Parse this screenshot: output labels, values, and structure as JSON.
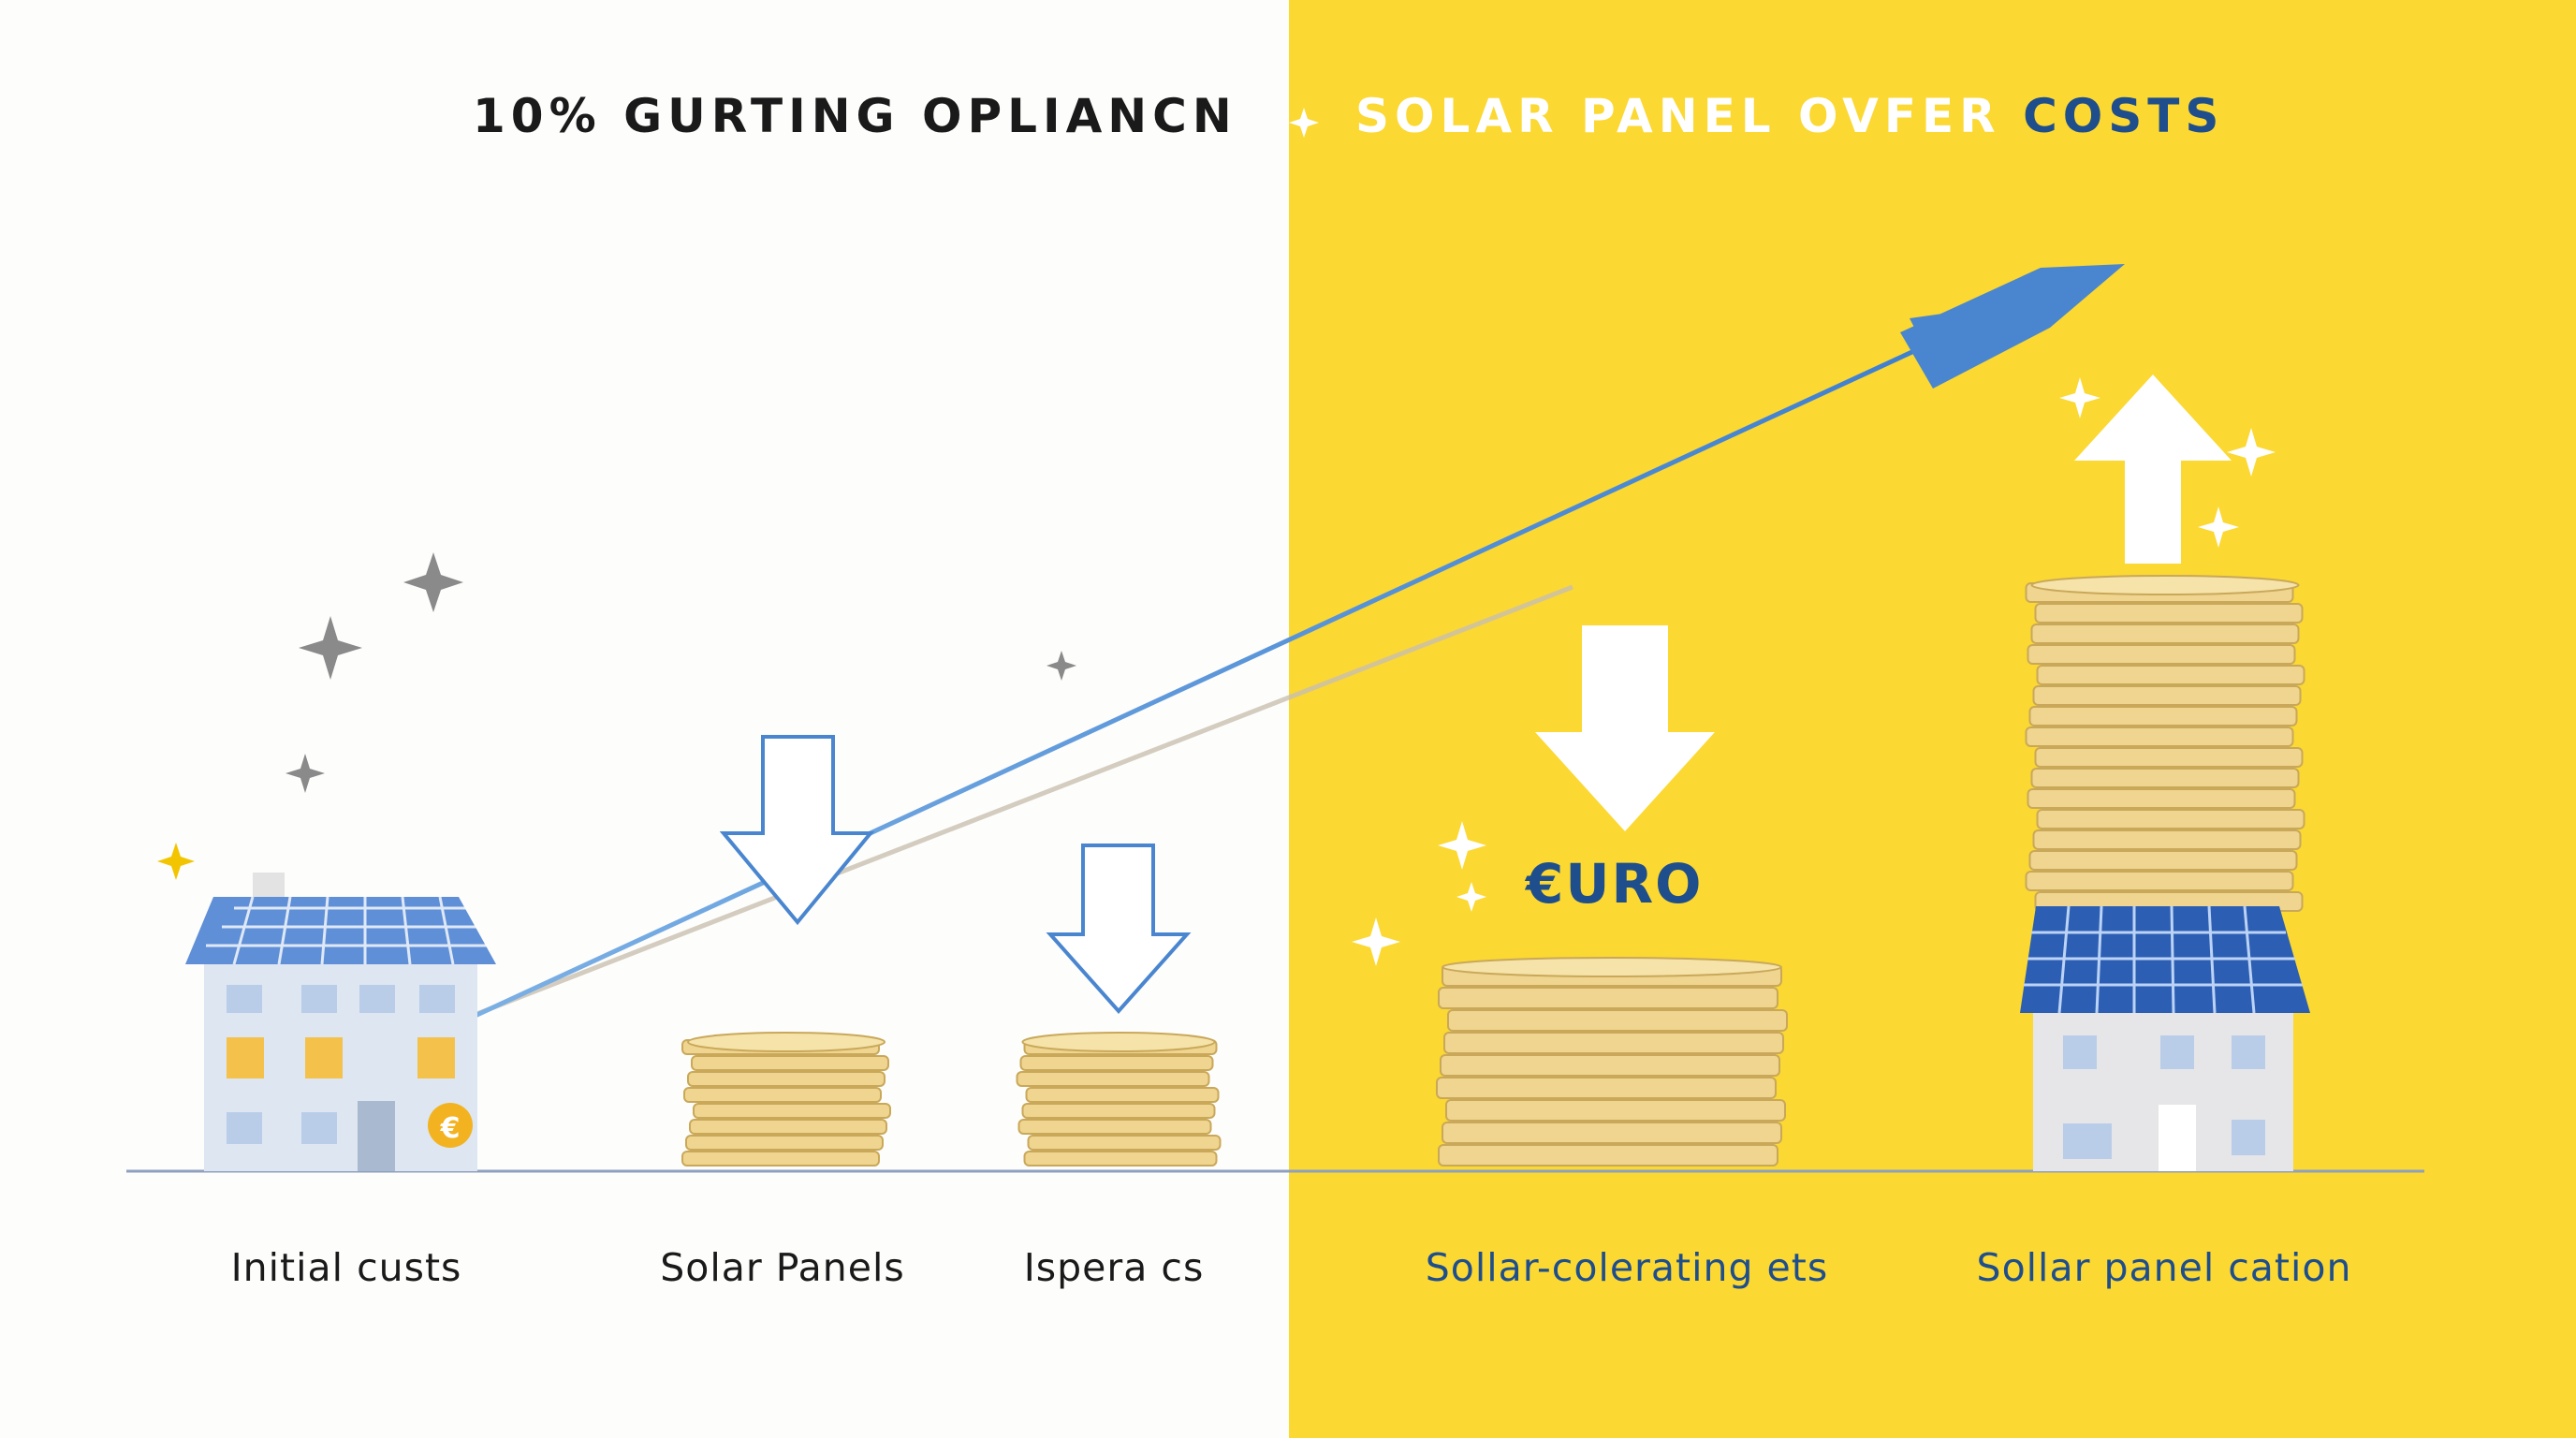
{
  "title": {
    "left": "10% GURTING OPLIANCN",
    "right_main": "SOLAR PANEL OVFER",
    "right_accent": "COSTS"
  },
  "euro_label": "€URO",
  "house_badge": "€",
  "labels": [
    {
      "text": "Initial custs"
    },
    {
      "text": "Solar Panels"
    },
    {
      "text": "Ispera cs"
    },
    {
      "text": "Sollar-colerating ets"
    },
    {
      "text": "Sollar  panel cation"
    }
  ],
  "colors": {
    "left_background": "#fdfdfc",
    "right_background": "#fbd832",
    "accent_blue": "#1f4e8c",
    "trend_arrow": "#4a86cf",
    "coin_gold": "#efd58f",
    "solar_panel": "#3a6fc4"
  },
  "icons": [
    "house-icon",
    "coin-stack-icon",
    "down-arrow-icon",
    "up-arrow-icon",
    "trend-arrow-icon",
    "sparkle-icon",
    "euro-coin-icon"
  ]
}
